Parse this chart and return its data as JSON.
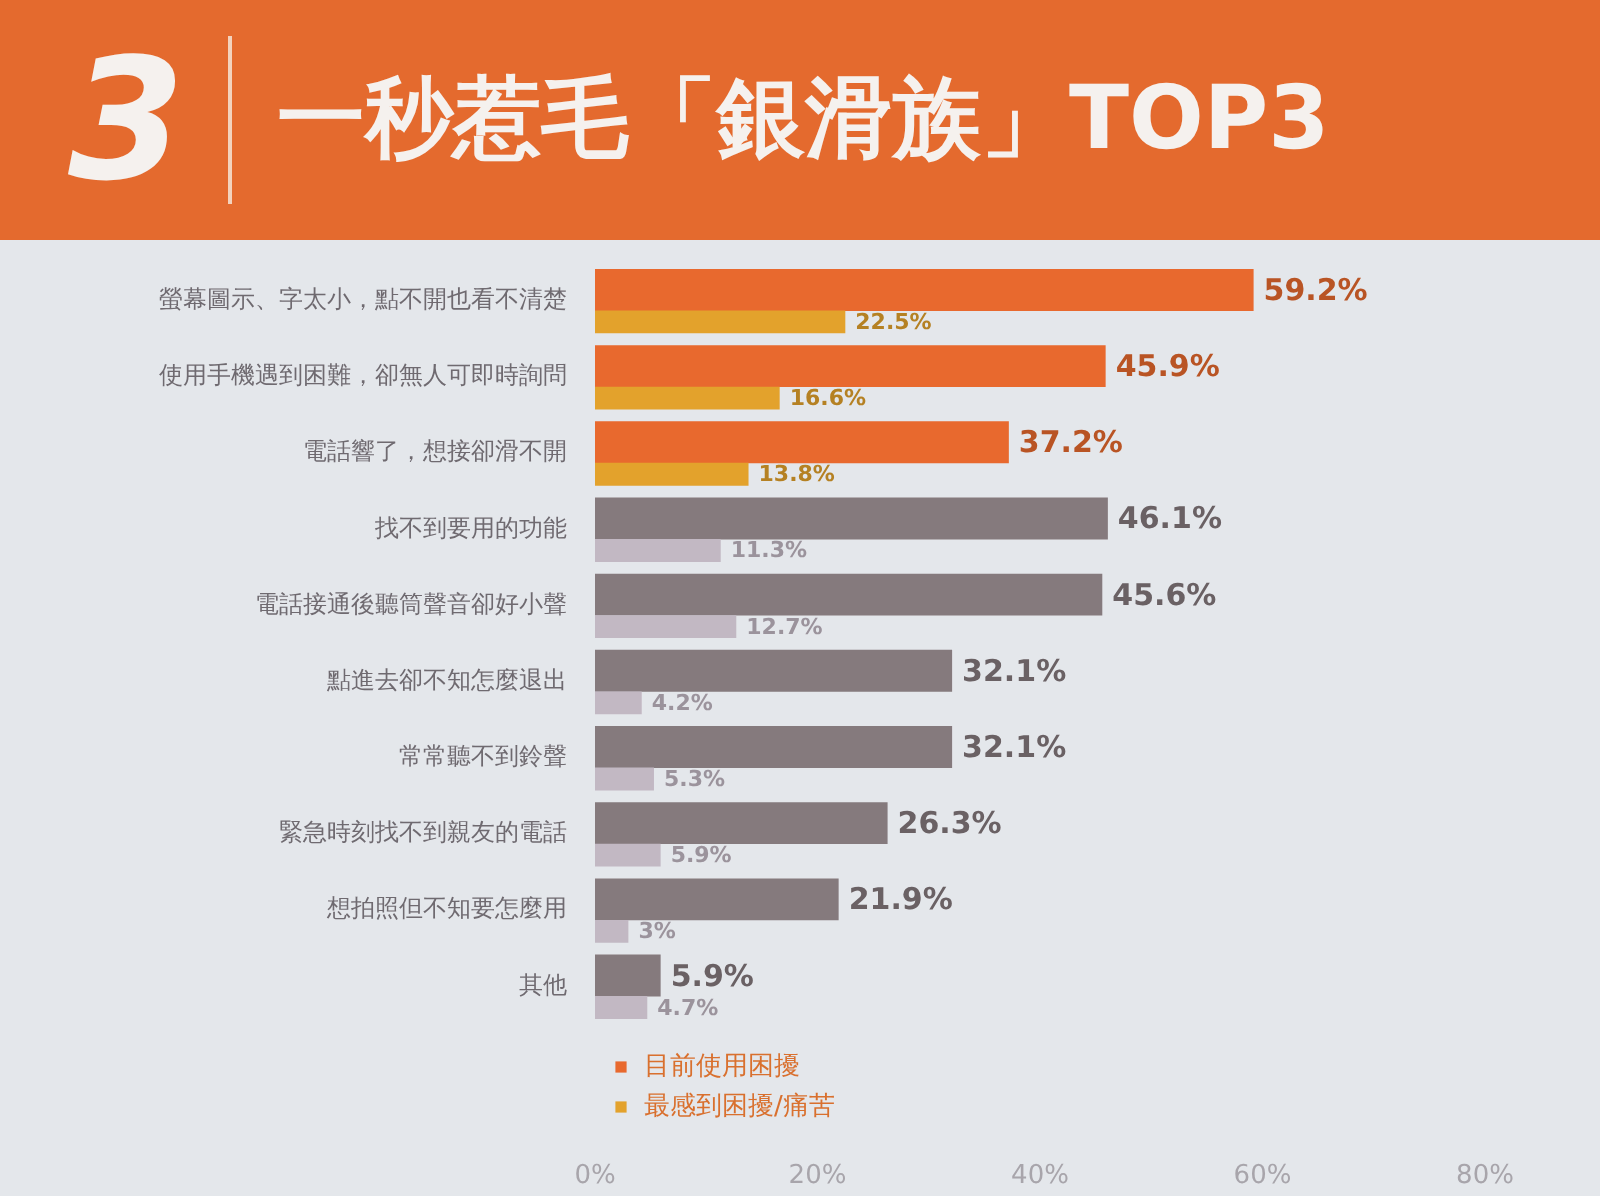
{
  "chart_data": {
    "type": "bar",
    "orientation": "horizontal",
    "title": "一秒惹毛「銀滑族」TOP3",
    "annotations": [
      "3"
    ],
    "categories": [
      "螢幕圖示、字太小，點不開也看不清楚",
      "使用手機遇到困難，卻無人可即時詢問",
      "電話響了，想接卻滑不開",
      "找不到要用的功能",
      "電話接通後聽筒聲音卻好小聲",
      "點進去卻不知怎麼退出",
      "常常聽不到鈴聲",
      "緊急時刻找不到親友的電話",
      "想拍照但不知要怎麼用",
      "其他"
    ],
    "series": [
      {
        "name": "目前使用困擾",
        "color": "#e8692e",
        "colors": [
          "#e8692e",
          "#e8692e",
          "#e8692e",
          "#857a7d",
          "#857a7d",
          "#857a7d",
          "#857a7d",
          "#857a7d",
          "#857a7d",
          "#857a7d"
        ],
        "values": [
          59.2,
          45.9,
          37.2,
          46.1,
          45.6,
          32.1,
          32.1,
          26.3,
          21.9,
          5.9
        ],
        "value_labels": [
          "59.2%",
          "45.9%",
          "37.2%",
          "46.1%",
          "45.6%",
          "32.1%",
          "32.1%",
          "26.3%",
          "21.9%",
          "5.9%"
        ]
      },
      {
        "name": "最感到困擾/痛苦",
        "color": "#e3a22c",
        "colors": [
          "#e3a22c",
          "#e3a22c",
          "#e3a22c",
          "#c2b8c3",
          "#c2b8c3",
          "#c2b8c3",
          "#c2b8c3",
          "#c2b8c3",
          "#c2b8c3",
          "#c2b8c3"
        ],
        "values": [
          22.5,
          16.6,
          13.8,
          11.3,
          12.7,
          4.2,
          5.3,
          5.9,
          3,
          4.7
        ],
        "value_labels": [
          "22.5%",
          "16.6%",
          "13.8%",
          "11.3%",
          "12.7%",
          "4.2%",
          "5.3%",
          "5.9%",
          "3%",
          "4.7%"
        ]
      }
    ],
    "xlim": [
      0,
      80
    ],
    "xticks": [
      {
        "value": 0,
        "label": "0%"
      },
      {
        "value": 20,
        "label": "20%"
      },
      {
        "value": 40,
        "label": "40%"
      },
      {
        "value": 60,
        "label": "60%"
      },
      {
        "value": 80,
        "label": "80%"
      }
    ],
    "legend": "bottom left"
  }
}
